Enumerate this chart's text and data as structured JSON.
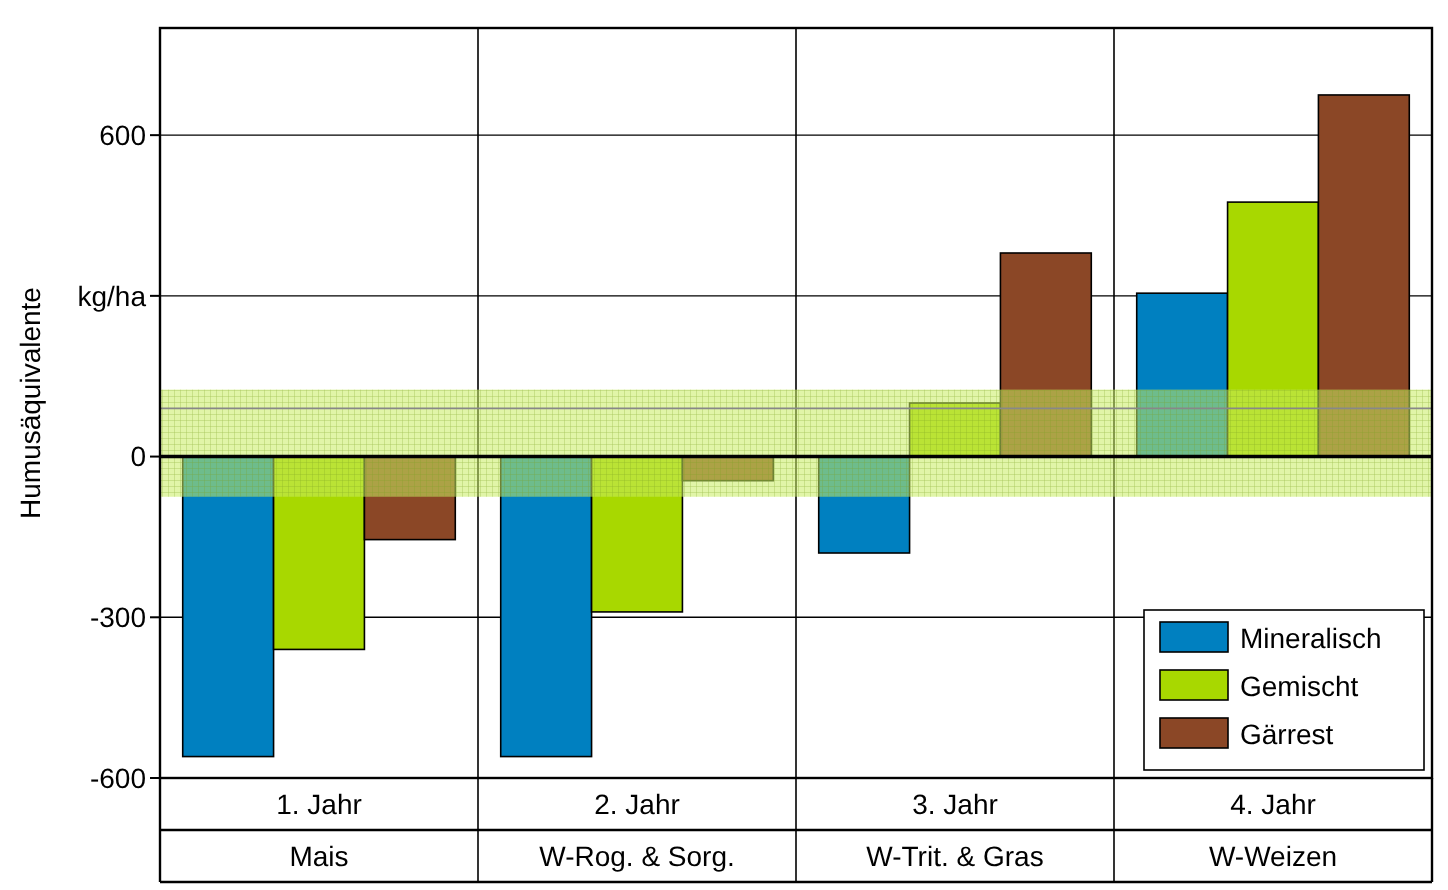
{
  "chart_data": {
    "type": "bar",
    "ylabel": "Humusäquivalente",
    "categories": [
      "1. Jahr\nMais",
      "2. Jahr\nW-Rog. & Sorg.",
      "3. Jahr\nW-Trit. & Gras",
      "4. Jahr\nW-Weizen"
    ],
    "series": [
      {
        "name": "Mineralisch",
        "color": "#0080c0",
        "values": [
          -560,
          -560,
          -180,
          305
        ]
      },
      {
        "name": "Gemischt",
        "color": "#a8d800",
        "values": [
          -360,
          -290,
          100,
          475
        ]
      },
      {
        "name": "Gärrest",
        "color": "#8b4726",
        "values": [
          -155,
          -45,
          380,
          675
        ]
      }
    ],
    "ylim": [
      -600,
      800
    ],
    "yticks": [
      -600,
      -300,
      0,
      {
        "value": 300,
        "label": "kg/ha"
      },
      600
    ],
    "grid": "y",
    "legend": "bottom right",
    "bands": [
      {
        "axis": "y",
        "from": -75,
        "to": 125,
        "color": "#c8ec60"
      }
    ],
    "ref_lines": [
      {
        "axis": "y",
        "value": 90,
        "color": "#888888"
      }
    ]
  }
}
